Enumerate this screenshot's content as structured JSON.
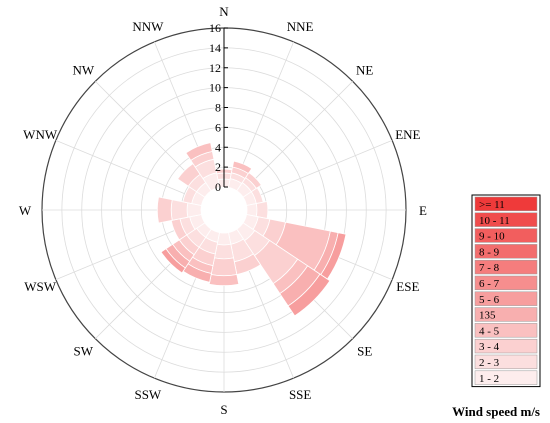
{
  "chart_data": {
    "type": "wind-rose",
    "directions": [
      "N",
      "NNE",
      "NE",
      "ENE",
      "E",
      "ESE",
      "SE",
      "SSE",
      "S",
      "SSW",
      "SW",
      "WSW",
      "W",
      "WNW",
      "NW",
      "NNW"
    ],
    "radial_ticks": [
      "0",
      "2",
      "4",
      "6",
      "8",
      "10",
      "12",
      "14",
      "16"
    ],
    "radial_range": [
      0,
      16
    ],
    "legend_title": "Wind speed m/s",
    "legend_bins": [
      {
        "label": ">= 11",
        "color": "#ef3a3a"
      },
      {
        "label": "10 - 11",
        "color": "#f04d4d"
      },
      {
        "label": "9 - 10",
        "color": "#f25e5e"
      },
      {
        "label": "8 - 9",
        "color": "#f36d6d"
      },
      {
        "label": "7 - 8",
        "color": "#f57d7d"
      },
      {
        "label": "6 - 7",
        "color": "#f68e8e"
      },
      {
        "label": "5 - 6",
        "color": "#f79e9e"
      },
      {
        "label": "135",
        "color": "#f8afaf"
      },
      {
        "label": "4 - 5",
        "color": "#fac0c0"
      },
      {
        "label": "3 - 4",
        "color": "#fbd0d0"
      },
      {
        "label": "2 - 3",
        "color": "#fcdfdf"
      },
      {
        "label": "1 - 2",
        "color": "#fdeded"
      }
    ],
    "bar_values": [
      {
        "dir": "N",
        "stack": [
          0.8,
          0.6,
          0.4
        ]
      },
      {
        "dir": "NNE",
        "stack": [
          0.9,
          0.6,
          0.6,
          0.6
        ]
      },
      {
        "dir": "NE",
        "stack": [
          1.0,
          0.6,
          0.6
        ]
      },
      {
        "dir": "ENE",
        "stack": [
          1.0,
          0.7
        ]
      },
      {
        "dir": "E",
        "stack": [
          1.0,
          1.1
        ]
      },
      {
        "dir": "ESE",
        "stack": [
          1.2,
          1.2,
          1.6,
          4.6,
          0.8,
          0.8
        ]
      },
      {
        "dir": "SE",
        "stack": [
          1.4,
          1.8,
          3.4,
          1.2,
          1.5,
          1.2
        ]
      },
      {
        "dir": "SSE",
        "stack": [
          1.2,
          1.8,
          1.3
        ]
      },
      {
        "dir": "S",
        "stack": [
          1.2,
          1.4,
          1.7,
          1.0
        ]
      },
      {
        "dir": "SSW",
        "stack": [
          1.0,
          1.2,
          1.2,
          0.8,
          0.9
        ]
      },
      {
        "dir": "SW",
        "stack": [
          1.0,
          1.2,
          0.9,
          0.8,
          0.8,
          0.6
        ]
      },
      {
        "dir": "WSW",
        "stack": [
          1.2,
          1.0,
          0.9
        ]
      },
      {
        "dir": "W",
        "stack": [
          1.4,
          1.6,
          1.4
        ]
      },
      {
        "dir": "WNW",
        "stack": [
          1.0,
          0.9
        ]
      },
      {
        "dir": "NW",
        "stack": [
          1.0,
          1.0,
          1.3
        ]
      },
      {
        "dir": "NNW",
        "stack": [
          1.5,
          1.4,
          0.8,
          0.9
        ]
      }
    ]
  }
}
